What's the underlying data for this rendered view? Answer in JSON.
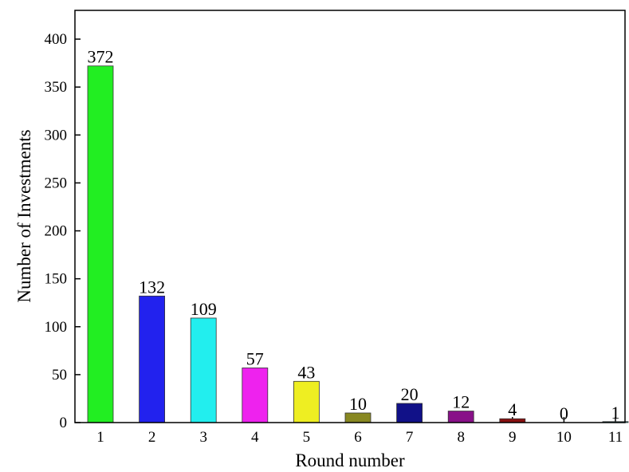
{
  "chart_data": {
    "type": "bar",
    "categories": [
      "1",
      "2",
      "3",
      "4",
      "5",
      "6",
      "7",
      "8",
      "9",
      "10",
      "11"
    ],
    "values": [
      372,
      132,
      109,
      57,
      43,
      10,
      20,
      12,
      4,
      0,
      1
    ],
    "data_labels": [
      "372",
      "132",
      "109",
      "57",
      "43",
      "10",
      "20",
      "12",
      "4",
      "0",
      "1"
    ],
    "bar_colors": [
      "#22ee22",
      "#2222ee",
      "#22eeee",
      "#ee22ee",
      "#eeee22",
      "#888822",
      "#111188",
      "#881188",
      "#881111",
      "#117777",
      "#117777"
    ],
    "xlabel": "Round number",
    "ylabel": "Number of Investments",
    "ylim": [
      0,
      430
    ],
    "yticks": [
      0,
      50,
      100,
      150,
      200,
      250,
      300,
      350,
      400
    ],
    "grid": false,
    "legend": "none"
  }
}
